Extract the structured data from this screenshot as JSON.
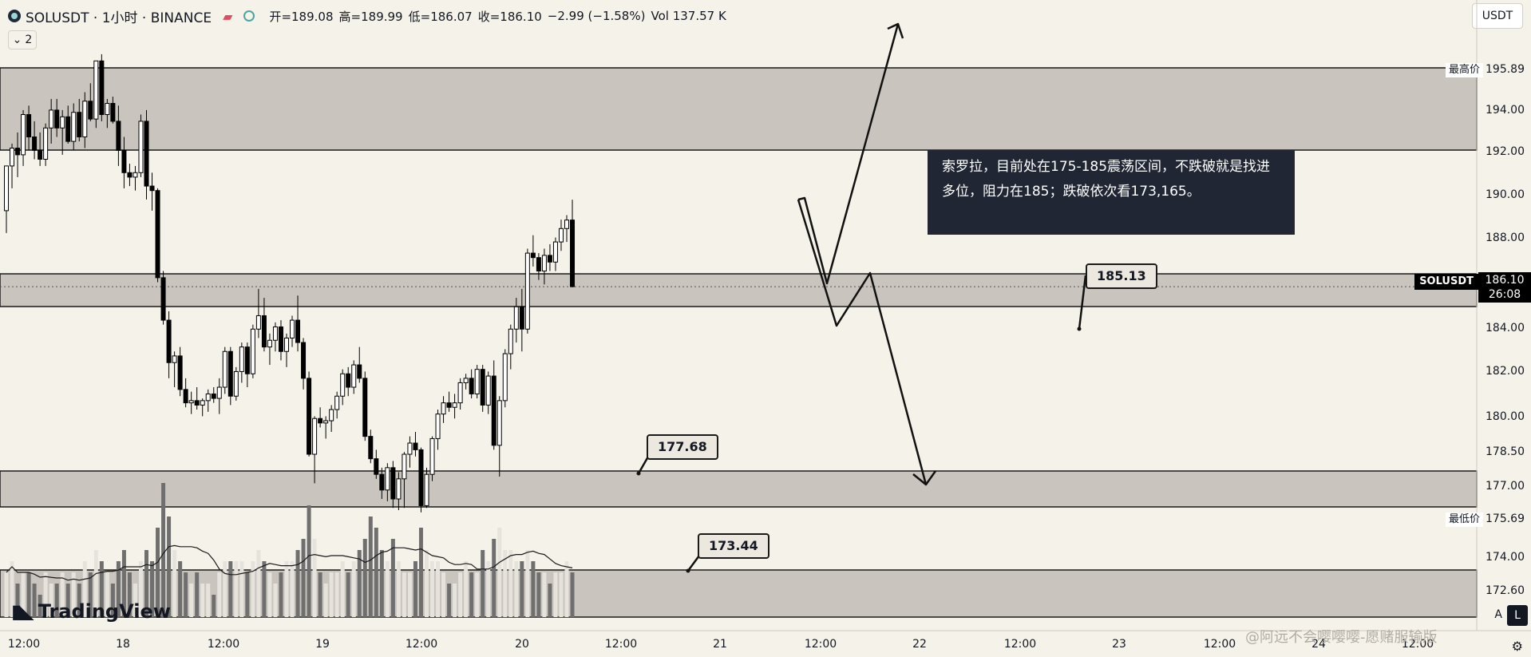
{
  "header": {
    "symbol_title": "SOLUSDT · 1小时 · BINANCE",
    "ohlc": [
      {
        "label": "开",
        "value": "189.08"
      },
      {
        "label": "高",
        "value": "189.99"
      },
      {
        "label": "低",
        "value": "186.07"
      },
      {
        "label": "收",
        "value": "186.10"
      },
      {
        "label": "",
        "value": "−2.99 (−1.58%)"
      },
      {
        "label": "Vol",
        "value": "137.57 K"
      }
    ],
    "indicator_count": "2",
    "currency": "USDT"
  },
  "price_axis": {
    "labels": [
      "195.89",
      "194.00",
      "192.00",
      "190.00",
      "188.00",
      "186.10",
      "184.00",
      "182.00",
      "180.00",
      "178.50",
      "177.00",
      "175.69",
      "174.00",
      "172.60"
    ],
    "high_tag": "最高价",
    "low_tag": "最低价",
    "current_symbol": "SOLUSDT",
    "current_price": "186.10",
    "countdown": "26:08",
    "auto_label": "A",
    "log_label": "L"
  },
  "time_axis": [
    "12:00",
    "18",
    "12:00",
    "19",
    "12:00",
    "20",
    "12:00",
    "21",
    "12:00",
    "22",
    "12:00",
    "23",
    "12:00",
    "24",
    "12:00"
  ],
  "annotations": {
    "note_text": "索罗拉，目前处在175-185震荡区间，不跌破就是找进多位，阻力在185；跌破依次看173,165。",
    "callout_185": "185.13",
    "callout_177": "177.68",
    "callout_173": "173.44"
  },
  "branding": {
    "tradingview": "TradingView",
    "watermark": "@阿远不会嘤嘤嘤-愿赌服输版"
  },
  "colors": {
    "background": "#f5f2ea",
    "zone": "#c9c4bd",
    "bull": "#ffffff",
    "bear": "#000000",
    "volume_bull": "#e6e3dd",
    "volume_bear": "#6f6f6f"
  },
  "chart_data": {
    "type": "candlestick",
    "symbol": "SOLUSDT",
    "interval": "1小时",
    "exchange": "BINANCE",
    "ylim": [
      171.2,
      198.4
    ],
    "candles": [
      [
        189.5,
        191.5,
        188.5,
        191.5,
        4
      ],
      [
        191.5,
        192.5,
        190.5,
        192.3,
        5
      ],
      [
        192.3,
        193,
        191,
        192,
        3
      ],
      [
        192,
        194,
        191.5,
        193.8,
        4
      ],
      [
        193.8,
        194.2,
        192.2,
        192.8,
        4
      ],
      [
        192.8,
        193.5,
        191.8,
        192.2,
        3
      ],
      [
        192.2,
        193,
        191.5,
        191.8,
        2
      ],
      [
        191.8,
        193.4,
        191.5,
        193.2,
        4
      ],
      [
        193.2,
        194.5,
        192.5,
        194,
        3
      ],
      [
        194,
        194.5,
        192.8,
        193.2,
        3
      ],
      [
        193.2,
        194,
        192,
        193.7,
        4
      ],
      [
        193.7,
        194.2,
        192.5,
        192.6,
        3
      ],
      [
        192.6,
        194.3,
        192.2,
        193.9,
        4
      ],
      [
        193.9,
        194.5,
        192.6,
        192.8,
        3
      ],
      [
        192.8,
        194.8,
        192.3,
        194.4,
        5
      ],
      [
        194.4,
        195.2,
        193.5,
        193.6,
        4
      ],
      [
        193.6,
        196.2,
        193.2,
        196.2,
        6
      ],
      [
        196.2,
        196.5,
        193.5,
        193.8,
        5
      ],
      [
        193.8,
        194.5,
        193.2,
        194.3,
        4
      ],
      [
        194.3,
        194.6,
        193.4,
        193.5,
        3
      ],
      [
        193.5,
        194.2,
        191.5,
        192.2,
        5
      ],
      [
        192.2,
        192.8,
        190.5,
        191.2,
        6
      ],
      [
        191.2,
        191.6,
        190.6,
        191,
        4
      ],
      [
        191,
        191.5,
        190.4,
        191.2,
        3
      ],
      [
        191.2,
        193.8,
        191,
        193.5,
        5
      ],
      [
        193.5,
        194,
        190,
        190.6,
        6
      ],
      [
        190.6,
        191.2,
        189.5,
        190.4,
        5
      ],
      [
        190.4,
        190.5,
        186.3,
        186.5,
        8
      ],
      [
        186.5,
        186.8,
        184.4,
        184.6,
        12
      ],
      [
        184.6,
        185,
        182,
        182.7,
        9
      ],
      [
        182.7,
        183.2,
        181.6,
        183,
        6
      ],
      [
        183,
        183.4,
        181.2,
        181.5,
        5
      ],
      [
        181.5,
        182,
        180.7,
        180.9,
        4
      ],
      [
        180.9,
        181.4,
        180.4,
        181,
        3
      ],
      [
        181,
        181.6,
        180.6,
        180.8,
        4
      ],
      [
        180.8,
        181.1,
        180.3,
        181,
        3
      ],
      [
        181,
        181.5,
        180.5,
        181.3,
        3
      ],
      [
        181.3,
        181.6,
        180.9,
        181.1,
        2
      ],
      [
        181.1,
        182,
        180.4,
        181.6,
        4
      ],
      [
        181.6,
        183.4,
        181.3,
        183.2,
        5
      ],
      [
        183.2,
        183.4,
        180.8,
        181.2,
        5
      ],
      [
        181.2,
        182.5,
        181,
        182.3,
        5
      ],
      [
        182.3,
        183.6,
        181.8,
        183.4,
        5
      ],
      [
        183.4,
        183.6,
        181.6,
        182.2,
        4
      ],
      [
        182.2,
        184.4,
        182,
        184.2,
        5
      ],
      [
        184.2,
        186,
        183.8,
        184.8,
        6
      ],
      [
        184.8,
        185.6,
        183.2,
        183.4,
        5
      ],
      [
        183.4,
        184,
        182.6,
        183.7,
        4
      ],
      [
        183.7,
        184.5,
        183.2,
        184.3,
        3
      ],
      [
        184.3,
        184.6,
        182.8,
        183.2,
        4
      ],
      [
        183.2,
        184,
        182.5,
        183.8,
        5
      ],
      [
        183.8,
        184.8,
        183.4,
        184.6,
        5
      ],
      [
        184.6,
        185.7,
        183.2,
        183.6,
        6
      ],
      [
        183.6,
        183.8,
        181.5,
        182,
        7
      ],
      [
        182,
        182.3,
        178.5,
        178.6,
        10
      ],
      [
        178.6,
        180.3,
        177.3,
        180.2,
        7
      ],
      [
        180.2,
        180.7,
        179.8,
        180,
        4
      ],
      [
        180,
        180.3,
        179.3,
        180.1,
        3
      ],
      [
        180.1,
        180.8,
        179.6,
        180.6,
        4
      ],
      [
        180.6,
        181.4,
        180.2,
        181.2,
        4
      ],
      [
        181.2,
        182.4,
        180.8,
        182.2,
        5
      ],
      [
        182.2,
        182.5,
        181.2,
        181.6,
        4
      ],
      [
        181.6,
        182.8,
        181.3,
        182.6,
        5
      ],
      [
        182.6,
        183.4,
        181.8,
        182,
        6
      ],
      [
        182,
        182.3,
        179.2,
        179.4,
        7
      ],
      [
        179.4,
        179.7,
        178.2,
        178.4,
        9
      ],
      [
        178.4,
        178.8,
        177.5,
        177.7,
        8
      ],
      [
        177.7,
        178,
        176.6,
        177,
        6
      ],
      [
        177,
        178.2,
        176.5,
        178,
        5
      ],
      [
        178,
        178.3,
        176.2,
        176.6,
        7
      ],
      [
        176.6,
        177.8,
        176.1,
        177.5,
        5
      ],
      [
        177.5,
        178.7,
        176.2,
        178.6,
        4
      ],
      [
        178.6,
        179.4,
        178,
        179.1,
        4
      ],
      [
        179.1,
        179.6,
        178.5,
        178.8,
        5
      ],
      [
        178.8,
        178.9,
        176,
        176.3,
        8
      ],
      [
        176.3,
        178,
        176.2,
        177.7,
        6
      ],
      [
        177.7,
        179.4,
        177.4,
        179.3,
        5
      ],
      [
        179.3,
        180.6,
        178.8,
        180.4,
        5
      ],
      [
        180.4,
        181.2,
        180,
        180.9,
        4
      ],
      [
        180.9,
        181.4,
        180.5,
        180.7,
        3
      ],
      [
        180.7,
        181.3,
        180.2,
        180.9,
        3
      ],
      [
        180.9,
        182,
        180.6,
        181.8,
        4
      ],
      [
        181.8,
        182.2,
        181.5,
        182,
        5
      ],
      [
        182,
        182.4,
        181.1,
        181.3,
        4
      ],
      [
        181.3,
        182.6,
        181.1,
        182.4,
        4
      ],
      [
        182.4,
        182.6,
        180.5,
        180.8,
        6
      ],
      [
        180.8,
        182.3,
        180.4,
        182.1,
        5
      ],
      [
        182.1,
        182.8,
        178.8,
        179,
        7
      ],
      [
        179,
        181.2,
        177.6,
        181,
        8
      ],
      [
        181,
        183.3,
        180.7,
        183.1,
        6
      ],
      [
        183.1,
        184.4,
        182.4,
        184.2,
        6
      ],
      [
        184.2,
        185.6,
        183.6,
        185.2,
        5
      ],
      [
        185.2,
        186,
        183.2,
        184.2,
        5
      ],
      [
        184.2,
        187.8,
        184,
        187.6,
        6
      ],
      [
        187.6,
        188.4,
        187,
        187.4,
        5
      ],
      [
        187.4,
        187.6,
        186.4,
        186.8,
        4
      ],
      [
        186.8,
        187.8,
        186.2,
        187.5,
        4
      ],
      [
        187.5,
        188,
        186.8,
        187.2,
        3
      ],
      [
        187.2,
        188.3,
        186.8,
        188.1,
        4
      ],
      [
        188.1,
        189.1,
        187.7,
        188.7,
        4
      ],
      [
        188.7,
        189.3,
        188.1,
        189.08,
        5
      ],
      [
        189.08,
        189.99,
        186.07,
        186.1,
        4
      ]
    ]
  }
}
